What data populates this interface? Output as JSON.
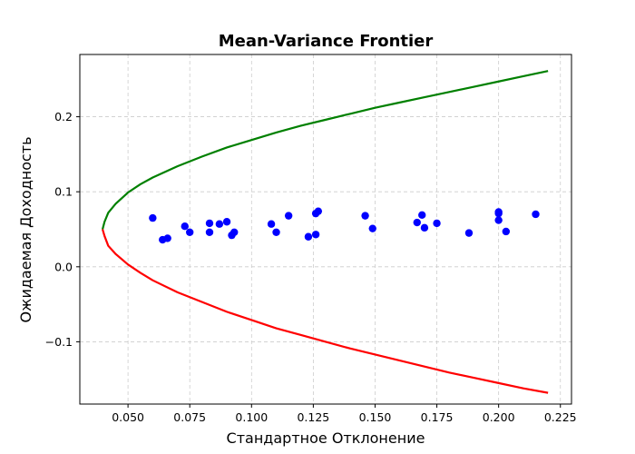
{
  "chart_data": {
    "type": "scatter",
    "title": "Mean-Variance Frontier",
    "xlabel": "Стандартное Отклонение",
    "ylabel": "Ожидаемая Доходность",
    "xlim": [
      0.0305,
      0.2295
    ],
    "ylim": [
      -0.183,
      0.283
    ],
    "grid": true,
    "legend": "none",
    "x_ticks": [
      {
        "value": 0.05,
        "label": "0.050"
      },
      {
        "value": 0.075,
        "label": "0.075"
      },
      {
        "value": 0.1,
        "label": "0.100"
      },
      {
        "value": 0.125,
        "label": "0.125"
      },
      {
        "value": 0.15,
        "label": "0.150"
      },
      {
        "value": 0.175,
        "label": "0.175"
      },
      {
        "value": 0.2,
        "label": "0.200"
      },
      {
        "value": 0.225,
        "label": "0.225"
      }
    ],
    "y_ticks": [
      {
        "value": -0.1,
        "label": "−0.1"
      },
      {
        "value": 0.0,
        "label": "0.0"
      },
      {
        "value": 0.1,
        "label": "0.1"
      },
      {
        "value": 0.2,
        "label": "0.2"
      }
    ],
    "series": [
      {
        "color": "#008000",
        "kind": "line",
        "x": [
          0.0397,
          0.0405,
          0.042,
          0.045,
          0.05,
          0.055,
          0.06,
          0.07,
          0.08,
          0.09,
          0.1,
          0.11,
          0.12,
          0.13,
          0.14,
          0.15,
          0.16,
          0.17,
          0.18,
          0.19,
          0.2,
          0.21,
          0.22
        ],
        "y": [
          0.05,
          0.06,
          0.072,
          0.084,
          0.099,
          0.11,
          0.119,
          0.134,
          0.147,
          0.159,
          0.169,
          0.179,
          0.188,
          0.196,
          0.204,
          0.212,
          0.219,
          0.226,
          0.233,
          0.24,
          0.247,
          0.254,
          0.261
        ]
      },
      {
        "color": "#ff0000",
        "kind": "line",
        "x": [
          0.0397,
          0.0405,
          0.042,
          0.045,
          0.05,
          0.055,
          0.06,
          0.07,
          0.08,
          0.09,
          0.1,
          0.11,
          0.12,
          0.13,
          0.14,
          0.15,
          0.16,
          0.17,
          0.18,
          0.19,
          0.2,
          0.21,
          0.22
        ],
        "y": [
          0.05,
          0.041,
          0.028,
          0.017,
          0.003,
          -0.008,
          -0.018,
          -0.034,
          -0.047,
          -0.06,
          -0.071,
          -0.082,
          -0.091,
          -0.1,
          -0.109,
          -0.117,
          -0.125,
          -0.133,
          -0.141,
          -0.148,
          -0.155,
          -0.162,
          -0.168
        ]
      },
      {
        "color": "#0000ff",
        "kind": "scatter",
        "x": [
          0.06,
          0.064,
          0.066,
          0.073,
          0.075,
          0.083,
          0.083,
          0.087,
          0.09,
          0.092,
          0.093,
          0.108,
          0.11,
          0.115,
          0.123,
          0.126,
          0.126,
          0.127,
          0.146,
          0.149,
          0.167,
          0.169,
          0.17,
          0.175,
          0.188,
          0.2,
          0.2,
          0.2,
          0.203,
          0.215
        ],
        "y": [
          0.065,
          0.036,
          0.038,
          0.054,
          0.046,
          0.058,
          0.046,
          0.057,
          0.06,
          0.042,
          0.046,
          0.057,
          0.046,
          0.068,
          0.04,
          0.043,
          0.071,
          0.074,
          0.068,
          0.051,
          0.059,
          0.069,
          0.052,
          0.058,
          0.045,
          0.062,
          0.071,
          0.073,
          0.047,
          0.07
        ]
      }
    ]
  }
}
